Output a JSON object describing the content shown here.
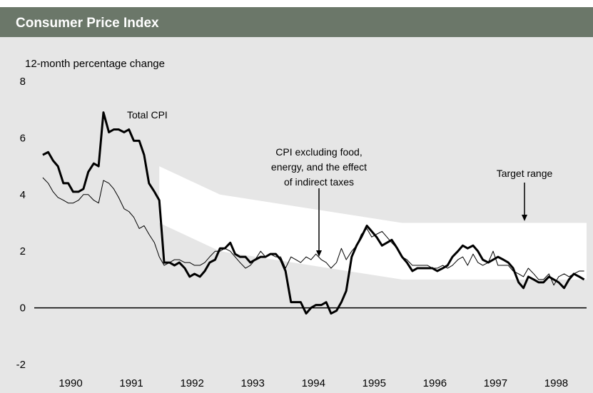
{
  "chart_data": {
    "type": "line",
    "title": "Consumer Price Index",
    "y_label": "12-month percentage change",
    "x": [
      1990.04,
      1990.13,
      1990.21,
      1990.29,
      1990.38,
      1990.46,
      1990.54,
      1990.63,
      1990.71,
      1990.79,
      1990.88,
      1990.96,
      1991.04,
      1991.13,
      1991.21,
      1991.29,
      1991.38,
      1991.46,
      1991.54,
      1991.63,
      1991.71,
      1991.79,
      1991.88,
      1991.96,
      1992.04,
      1992.13,
      1992.21,
      1992.29,
      1992.38,
      1992.46,
      1992.54,
      1992.63,
      1992.71,
      1992.79,
      1992.88,
      1992.96,
      1993.04,
      1993.13,
      1993.21,
      1993.29,
      1993.38,
      1993.46,
      1993.54,
      1993.63,
      1993.71,
      1993.79,
      1993.88,
      1993.96,
      1994.04,
      1994.13,
      1994.21,
      1994.29,
      1994.38,
      1994.46,
      1994.54,
      1994.63,
      1994.71,
      1994.79,
      1994.88,
      1994.96,
      1995.04,
      1995.13,
      1995.21,
      1995.29,
      1995.38,
      1995.46,
      1995.54,
      1995.63,
      1995.71,
      1995.79,
      1995.88,
      1995.96,
      1996.04,
      1996.13,
      1996.21,
      1996.29,
      1996.38,
      1996.46,
      1996.54,
      1996.63,
      1996.71,
      1996.79,
      1996.88,
      1996.96,
      1997.04,
      1997.13,
      1997.21,
      1997.29,
      1997.38,
      1997.46,
      1997.54,
      1997.63,
      1997.71,
      1997.79,
      1997.88,
      1997.96,
      1998.04,
      1998.13,
      1998.21,
      1998.29,
      1998.38,
      1998.46,
      1998.54,
      1998.63,
      1998.71,
      1998.79,
      1998.88,
      1998.96
    ],
    "series": [
      {
        "name": "Total CPI",
        "color": "#000000",
        "width": 3,
        "values": [
          5.4,
          5.5,
          5.2,
          5.0,
          4.4,
          4.4,
          4.1,
          4.1,
          4.2,
          4.8,
          5.1,
          5.0,
          6.9,
          6.2,
          6.3,
          6.3,
          6.2,
          6.3,
          5.9,
          5.9,
          5.4,
          4.4,
          4.1,
          3.8,
          1.6,
          1.6,
          1.5,
          1.6,
          1.4,
          1.1,
          1.2,
          1.1,
          1.3,
          1.6,
          1.7,
          2.1,
          2.1,
          2.3,
          1.9,
          1.8,
          1.8,
          1.6,
          1.7,
          1.8,
          1.8,
          1.9,
          1.9,
          1.7,
          1.3,
          0.2,
          0.2,
          0.2,
          -0.2,
          0.0,
          0.1,
          0.1,
          0.2,
          -0.2,
          -0.1,
          0.2,
          0.6,
          1.8,
          2.2,
          2.5,
          2.9,
          2.7,
          2.5,
          2.2,
          2.3,
          2.4,
          2.1,
          1.8,
          1.6,
          1.3,
          1.4,
          1.4,
          1.4,
          1.4,
          1.3,
          1.4,
          1.5,
          1.8,
          2.0,
          2.2,
          2.1,
          2.2,
          2.0,
          1.7,
          1.6,
          1.7,
          1.8,
          1.7,
          1.6,
          1.4,
          0.9,
          0.7,
          1.1,
          1.0,
          0.9,
          0.9,
          1.1,
          1.0,
          0.9,
          0.7,
          1.0,
          1.2,
          1.1,
          1.0
        ]
      },
      {
        "name": "CPI excluding food, energy, and the effect of indirect taxes",
        "color": "#000000",
        "width": 1,
        "values": [
          4.6,
          4.4,
          4.1,
          3.9,
          3.8,
          3.7,
          3.7,
          3.8,
          4.0,
          4.0,
          3.8,
          3.7,
          4.5,
          4.4,
          4.2,
          3.9,
          3.5,
          3.4,
          3.2,
          2.8,
          2.9,
          2.6,
          2.3,
          1.8,
          1.5,
          1.6,
          1.7,
          1.7,
          1.6,
          1.6,
          1.5,
          1.5,
          1.6,
          1.8,
          2.0,
          2.0,
          2.1,
          2.0,
          1.8,
          1.6,
          1.4,
          1.5,
          1.7,
          2.0,
          1.8,
          1.9,
          1.8,
          1.8,
          1.4,
          1.8,
          1.7,
          1.6,
          1.8,
          1.7,
          1.9,
          1.7,
          1.6,
          1.4,
          1.6,
          2.1,
          1.7,
          2.0,
          2.2,
          2.6,
          2.8,
          2.5,
          2.6,
          2.7,
          2.5,
          2.3,
          2.1,
          1.8,
          1.7,
          1.5,
          1.5,
          1.5,
          1.5,
          1.4,
          1.4,
          1.5,
          1.4,
          1.5,
          1.7,
          1.8,
          1.5,
          1.9,
          1.6,
          1.5,
          1.6,
          2.0,
          1.5,
          1.5,
          1.5,
          1.3,
          1.2,
          1.1,
          1.4,
          1.2,
          1.0,
          1.0,
          1.2,
          0.8,
          1.1,
          1.2,
          1.1,
          1.2,
          1.3,
          1.3
        ]
      }
    ],
    "target_range": {
      "name": "Target range",
      "color": "#ffffff",
      "x": [
        1991.96,
        1992.96,
        1995.96,
        1999.0
      ],
      "upper": [
        5,
        4,
        3,
        3
      ],
      "lower": [
        3,
        2,
        1,
        1
      ]
    },
    "annotations": [
      {
        "lines": [
          "Total CPI"
        ]
      },
      {
        "lines": [
          "CPI excluding food,",
          "energy, and the effect",
          "of indirect taxes"
        ]
      },
      {
        "lines": [
          "Target range"
        ]
      }
    ],
    "xlim": [
      1989.9,
      1999.0
    ],
    "xticks": [
      {
        "value": 1990.5,
        "label": "1990"
      },
      {
        "value": 1991.5,
        "label": "1991"
      },
      {
        "value": 1992.5,
        "label": "1992"
      },
      {
        "value": 1993.5,
        "label": "1993"
      },
      {
        "value": 1994.5,
        "label": "1994"
      },
      {
        "value": 1995.5,
        "label": "1995"
      },
      {
        "value": 1996.5,
        "label": "1996"
      },
      {
        "value": 1997.5,
        "label": "1997"
      },
      {
        "value": 1998.5,
        "label": "1998"
      }
    ],
    "ylim": [
      -2,
      8
    ],
    "yticks": [
      -2,
      0,
      2,
      4,
      6,
      8
    ]
  }
}
